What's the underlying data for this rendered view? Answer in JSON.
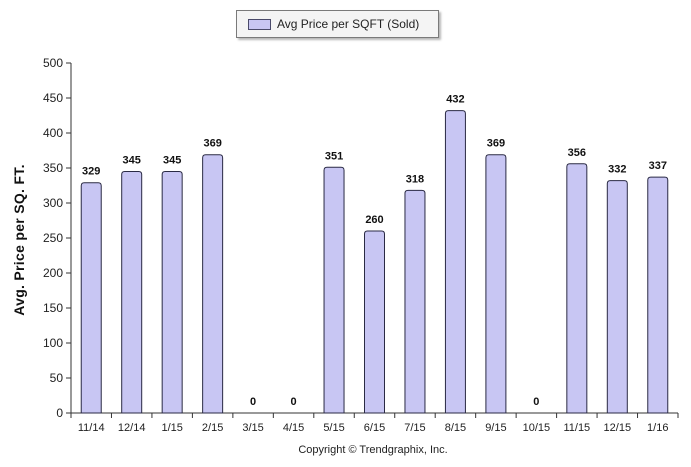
{
  "chart_data": {
    "type": "bar",
    "legend": {
      "label": "Avg Price per SQFT (Sold)",
      "placement": "top-center"
    },
    "categories": [
      "11/14",
      "12/14",
      "1/15",
      "2/15",
      "3/15",
      "4/15",
      "5/15",
      "6/15",
      "7/15",
      "8/15",
      "9/15",
      "10/15",
      "11/15",
      "12/15",
      "1/16"
    ],
    "series": [
      {
        "name": "Avg Price per SQFT (Sold)",
        "values": [
          329,
          345,
          345,
          369,
          0,
          0,
          351,
          260,
          318,
          432,
          369,
          0,
          356,
          332,
          337
        ]
      }
    ],
    "ylabel": "Avg. Price per SQ. FT.",
    "xlabel": "",
    "ylim": [
      0,
      500
    ],
    "yticks": [
      0,
      50,
      100,
      150,
      200,
      250,
      300,
      350,
      400,
      450,
      500
    ],
    "grid": false,
    "colors": {
      "bar_fill": "#c8c6f3",
      "bar_stroke": "#2a2a44"
    }
  },
  "footer": {
    "copyright": "Copyright © Trendgraphix, Inc."
  }
}
